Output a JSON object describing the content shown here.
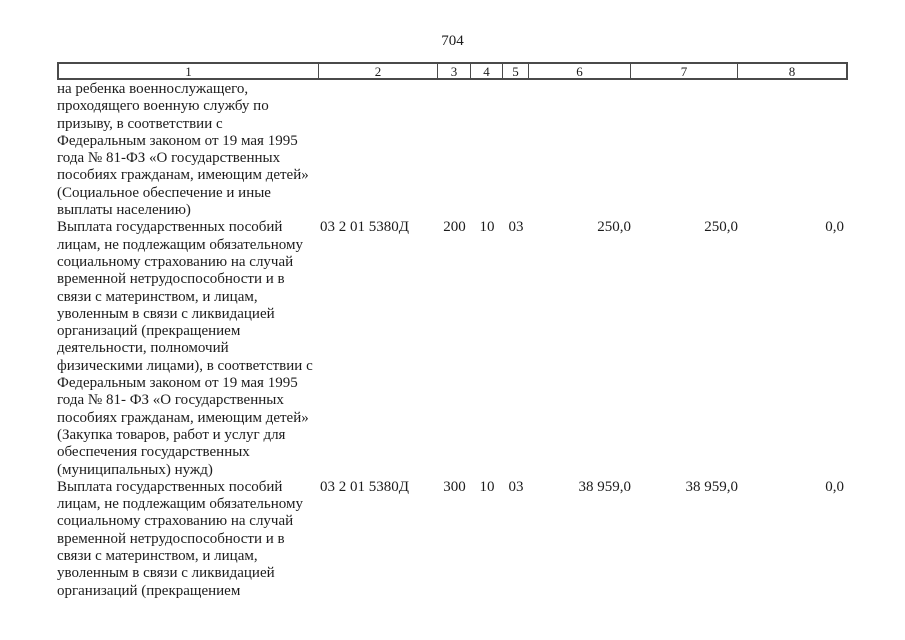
{
  "page_number": "704",
  "table": {
    "header": [
      "1",
      "2",
      "3",
      "4",
      "5",
      "6",
      "7",
      "8"
    ],
    "rows": [
      {
        "col1": "на ребенка военнослужащего,\nпроходящего военную службу по\nпризыву, в соответствии с\nФедеральным законом от 19 мая 1995\nгода № 81-ФЗ «О государственных\nпособиях гражданам, имеющим детей»\n(Социальное обеспечение и иные\nвыплаты населению)",
        "col2": "",
        "col3": "",
        "col4": "",
        "col5": "",
        "col6": "",
        "col7": "",
        "col8": ""
      },
      {
        "col1": "Выплата государственных пособий\nлицам, не подлежащим обязательному\nсоциальному страхованию на случай\nвременной нетрудоспособности и в\nсвязи с материнством, и лицам,\nуволенным в связи с ликвидацией\nорганизаций (прекращением\nдеятельности, полномочий\nфизическими лицами), в соответствии с\nФедеральным законом от 19 мая 1995\nгода № 81- ФЗ «О государственных\nпособиях гражданам, имеющим детей»\n(Закупка товаров, работ и услуг для\nобеспечения государственных\n(муниципальных) нужд)",
        "col2": "03 2 01 5380Д",
        "col3": "200",
        "col4": "10",
        "col5": "03",
        "col6": "250,0",
        "col7": "250,0",
        "col8": "0,0"
      },
      {
        "col1": "Выплата государственных пособий\nлицам, не подлежащим обязательному\nсоциальному страхованию на случай\nвременной нетрудоспособности и в\nсвязи с материнством, и лицам,\nуволенным в связи с ликвидацией\nорганизаций (прекращением",
        "col2": "03 2 01 5380Д",
        "col3": "300",
        "col4": "10",
        "col5": "03",
        "col6": "38 959,0",
        "col7": "38 959,0",
        "col8": "0,0"
      }
    ]
  }
}
